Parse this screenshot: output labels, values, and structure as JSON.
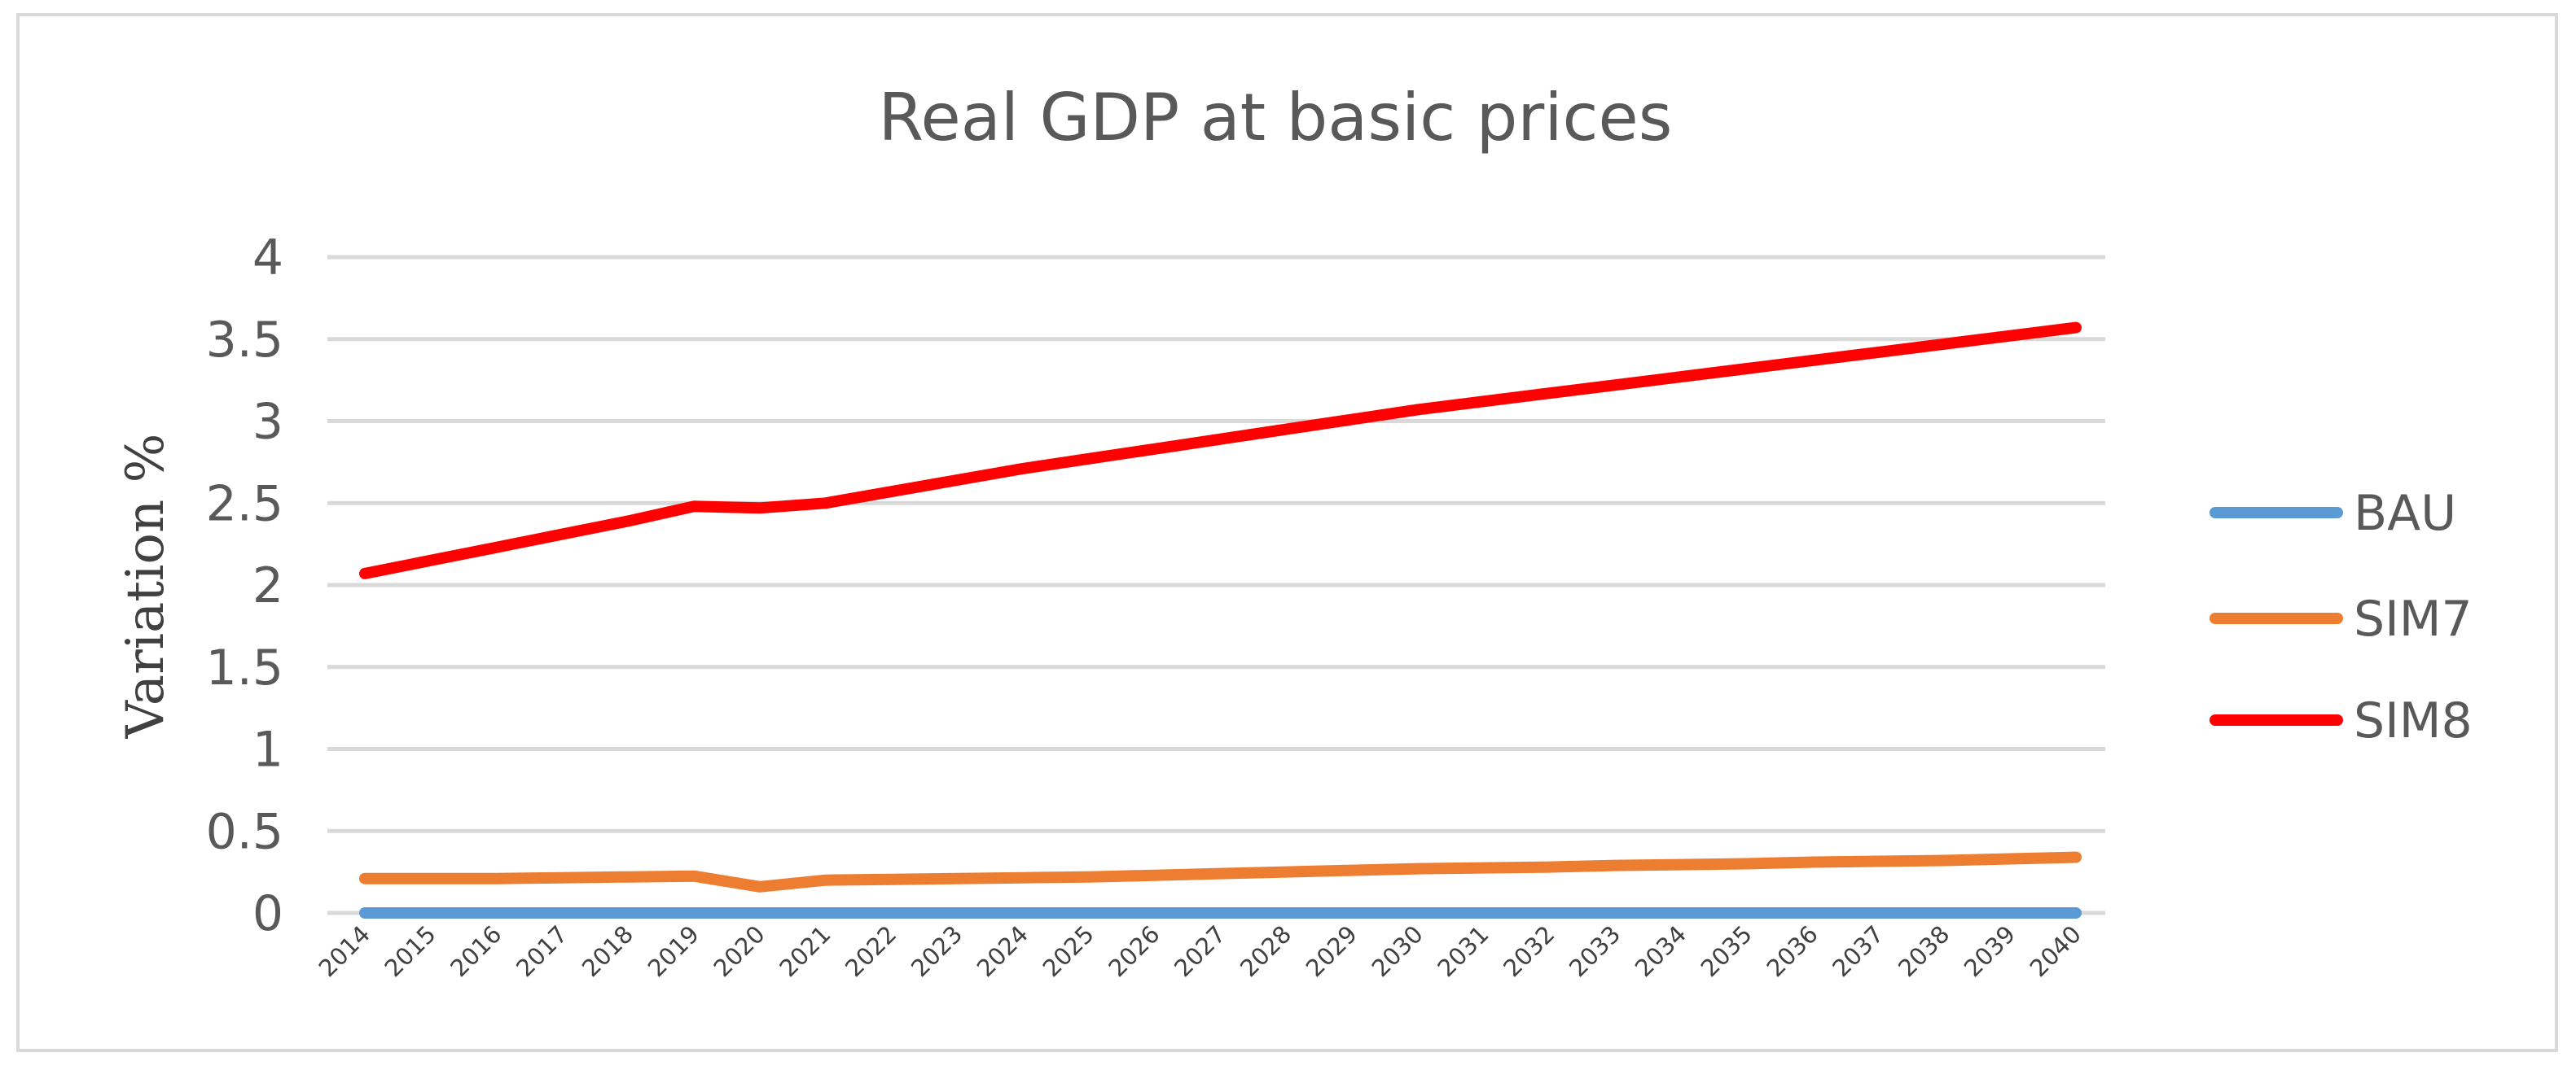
{
  "chart_data": {
    "type": "line",
    "title": "Real GDP at basic prices",
    "xlabel": "",
    "ylabel": "Variation %",
    "ylim": [
      0,
      4
    ],
    "yticks": [
      "0",
      "0.5",
      "1",
      "1.5",
      "2",
      "2.5",
      "3",
      "3.5",
      "4"
    ],
    "ytick_values": [
      0,
      0.5,
      1,
      1.5,
      2,
      2.5,
      3,
      3.5,
      4
    ],
    "grid": true,
    "legend_position": "right",
    "categories": [
      "2014",
      "2015",
      "2016",
      "2017",
      "2018",
      "2019",
      "2020",
      "2021",
      "2022",
      "2023",
      "2024",
      "2025",
      "2026",
      "2027",
      "2028",
      "2029",
      "2030",
      "2031",
      "2032",
      "2033",
      "2034",
      "2035",
      "2036",
      "2037",
      "2038",
      "2039",
      "2040"
    ],
    "series": [
      {
        "name": "BAU",
        "color": "#5b9bd5",
        "values": [
          0,
          0,
          0,
          0,
          0,
          0,
          0,
          0,
          0,
          0,
          0,
          0,
          0,
          0,
          0,
          0,
          0,
          0,
          0,
          0,
          0,
          0,
          0,
          0,
          0,
          0,
          0
        ]
      },
      {
        "name": "SIM7",
        "color": "#ed7d31",
        "values": [
          0.21,
          0.21,
          0.21,
          0.215,
          0.22,
          0.225,
          0.16,
          0.2,
          0.205,
          0.21,
          0.215,
          0.22,
          0.23,
          0.24,
          0.25,
          0.26,
          0.27,
          0.275,
          0.28,
          0.29,
          0.295,
          0.3,
          0.31,
          0.315,
          0.32,
          0.33,
          0.34
        ]
      },
      {
        "name": "SIM8",
        "color": "#ff0000",
        "values": [
          2.07,
          2.15,
          2.23,
          2.31,
          2.39,
          2.48,
          2.47,
          2.5,
          2.57,
          2.64,
          2.71,
          2.77,
          2.83,
          2.89,
          2.95,
          3.01,
          3.07,
          3.12,
          3.17,
          3.22,
          3.27,
          3.32,
          3.37,
          3.42,
          3.47,
          3.52,
          3.57
        ]
      }
    ]
  }
}
